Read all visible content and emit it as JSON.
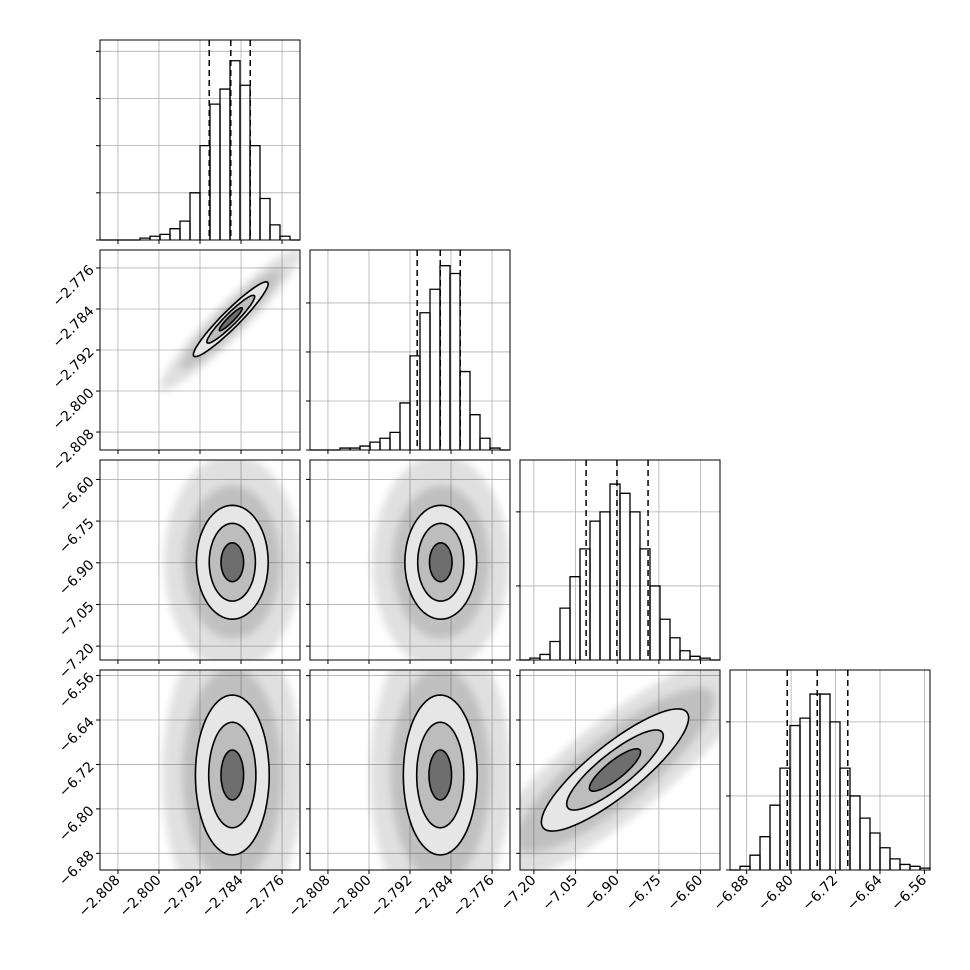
{
  "chart_data": {
    "type": "corner",
    "params": [
      {
        "lim": [
          -2.8115,
          -2.7725
        ],
        "ticks": [
          {
            "value": -2.808,
            "label": "−2.808"
          },
          {
            "value": -2.8,
            "label": "−2.800"
          },
          {
            "value": -2.792,
            "label": "−2.792"
          },
          {
            "value": -2.784,
            "label": "−2.784"
          },
          {
            "value": -2.776,
            "label": "−2.776"
          }
        ],
        "quantiles": [
          -2.7902,
          -2.786,
          -2.7822
        ],
        "bins": [
          -2.8115,
          -2.80955,
          -2.8076,
          -2.80565,
          -2.8037,
          -2.80175,
          -2.7998,
          -2.79785,
          -2.7959,
          -2.79395,
          -2.792,
          -2.79005,
          -2.7881,
          -2.78615,
          -2.7842,
          -2.78225,
          -2.7803,
          -2.77835,
          -2.7764,
          -2.77445,
          -2.7725
        ],
        "counts": [
          0,
          0,
          0,
          0,
          1,
          2,
          3,
          6,
          10,
          25,
          50,
          72,
          80,
          95,
          82,
          50,
          22,
          8,
          2,
          0
        ],
        "ylim": [
          0,
          106
        ],
        "yticks": [
          0,
          25,
          50,
          75,
          100
        ]
      },
      {
        "lim": [
          -2.8115,
          -2.7725
        ],
        "ticks": [
          {
            "value": -2.808,
            "label": "−2.808"
          },
          {
            "value": -2.8,
            "label": "−2.800"
          },
          {
            "value": -2.792,
            "label": "−2.792"
          },
          {
            "value": -2.784,
            "label": "−2.784"
          },
          {
            "value": -2.776,
            "label": "−2.776"
          }
        ],
        "quantiles": [
          -2.7906,
          -2.7861,
          -2.7822
        ],
        "bins": [
          -2.8115,
          -2.80955,
          -2.8076,
          -2.80565,
          -2.8037,
          -2.80175,
          -2.7998,
          -2.79785,
          -2.7959,
          -2.79395,
          -2.792,
          -2.79005,
          -2.7881,
          -2.78615,
          -2.7842,
          -2.78225,
          -2.7803,
          -2.77835,
          -2.7764,
          -2.77445,
          -2.7725
        ],
        "counts": [
          0,
          0,
          0,
          1,
          1,
          2,
          4,
          6,
          9,
          24,
          48,
          70,
          82,
          94,
          90,
          40,
          18,
          6,
          1,
          0
        ],
        "ylim": [
          0,
          102
        ],
        "yticks": [
          0,
          25,
          50,
          75
        ]
      },
      {
        "lim": [
          -7.25,
          -6.53
        ],
        "ticks": [
          {
            "value": -7.2,
            "label": "−7.20"
          },
          {
            "value": -7.05,
            "label": "−7.05"
          },
          {
            "value": -6.9,
            "label": "−6.90"
          },
          {
            "value": -6.75,
            "label": "−6.75"
          },
          {
            "value": -6.6,
            "label": "−6.60"
          }
        ],
        "quantiles": [
          -7.012,
          -6.901,
          -6.789
        ],
        "bins": [
          -7.25,
          -7.214,
          -7.178,
          -7.142,
          -7.106,
          -7.07,
          -7.034,
          -6.998,
          -6.962,
          -6.926,
          -6.89,
          -6.854,
          -6.818,
          -6.782,
          -6.746,
          -6.71,
          -6.674,
          -6.638,
          -6.602,
          -6.566,
          -6.53
        ],
        "counts": [
          0,
          1,
          3,
          10,
          28,
          45,
          60,
          75,
          80,
          95,
          90,
          80,
          60,
          40,
          22,
          12,
          5,
          2,
          1,
          0
        ],
        "ylim": [
          0,
          108
        ],
        "yticks": [
          0,
          40,
          80
        ]
      },
      {
        "lim": [
          -6.91,
          -6.55
        ],
        "ticks": [
          {
            "value": -6.88,
            "label": "−6.88"
          },
          {
            "value": -6.8,
            "label": "−6.80"
          },
          {
            "value": -6.72,
            "label": "−6.72"
          },
          {
            "value": -6.64,
            "label": "−6.64"
          },
          {
            "value": -6.56,
            "label": "−6.56"
          }
        ],
        "quantiles": [
          -6.807,
          -6.753,
          -6.698
        ],
        "bins": [
          -6.91,
          -6.892,
          -6.874,
          -6.856,
          -6.838,
          -6.82,
          -6.802,
          -6.784,
          -6.766,
          -6.748,
          -6.73,
          -6.712,
          -6.694,
          -6.676,
          -6.658,
          -6.64,
          -6.622,
          -6.604,
          -6.586,
          -6.568,
          -6.55
        ],
        "counts": [
          0,
          2,
          8,
          18,
          35,
          55,
          78,
          82,
          95,
          95,
          80,
          55,
          40,
          28,
          20,
          12,
          6,
          3,
          2,
          1
        ],
        "ylim": [
          0,
          108
        ],
        "yticks": [
          0,
          40,
          80
        ]
      }
    ],
    "pairs": [
      {
        "x": 0,
        "y": 1,
        "center": [
          -2.786,
          -2.786
        ],
        "contours": [
          [
            [
              0.0072,
              0.0072
            ],
            [
              -0.0012,
              0.0012
            ]
          ],
          [
            [
              0.0046,
              0.0046
            ],
            [
              -0.0008,
              0.0008
            ]
          ],
          [
            [
              0.0022,
              0.0022
            ],
            [
              -0.0004,
              0.0004
            ]
          ]
        ]
      },
      {
        "x": 0,
        "y": 2,
        "center": [
          -2.7857,
          -6.898
        ],
        "contours": [
          [
            [
              0.007,
              0
            ],
            [
              0,
              0.205
            ]
          ],
          [
            [
              0.0045,
              0
            ],
            [
              0,
              0.14
            ]
          ],
          [
            [
              0.0022,
              0
            ],
            [
              0,
              0.07
            ]
          ]
        ]
      },
      {
        "x": 1,
        "y": 2,
        "center": [
          -2.786,
          -6.898
        ],
        "contours": [
          [
            [
              0.007,
              0
            ],
            [
              0,
              0.205
            ]
          ],
          [
            [
              0.0045,
              0
            ],
            [
              0,
              0.14
            ]
          ],
          [
            [
              0.0022,
              0
            ],
            [
              0,
              0.07
            ]
          ]
        ]
      },
      {
        "x": 0,
        "y": 3,
        "center": [
          -2.7857,
          -6.739
        ],
        "contours": [
          [
            [
              0.0072,
              0
            ],
            [
              0,
              0.144
            ]
          ],
          [
            [
              0.0046,
              0
            ],
            [
              0,
              0.095
            ]
          ],
          [
            [
              0.0022,
              0
            ],
            [
              0,
              0.045
            ]
          ]
        ]
      },
      {
        "x": 1,
        "y": 3,
        "center": [
          -2.7861,
          -6.739
        ],
        "contours": [
          [
            [
              0.0072,
              0
            ],
            [
              0,
              0.144
            ]
          ],
          [
            [
              0.0046,
              0
            ],
            [
              0,
              0.095
            ]
          ],
          [
            [
              0.0022,
              0
            ],
            [
              0,
              0.045
            ]
          ]
        ]
      },
      {
        "x": 2,
        "y": 3,
        "center": [
          -6.908,
          -6.73
        ],
        "contours": [
          [
            [
              0.259,
              0.104
            ],
            [
              0.057,
              -0.036
            ]
          ],
          [
            [
              0.17,
              0.068
            ],
            [
              0.037,
              -0.024
            ]
          ],
          [
            [
              0.09,
              0.036
            ],
            [
              0.02,
              -0.013
            ]
          ]
        ]
      }
    ]
  }
}
